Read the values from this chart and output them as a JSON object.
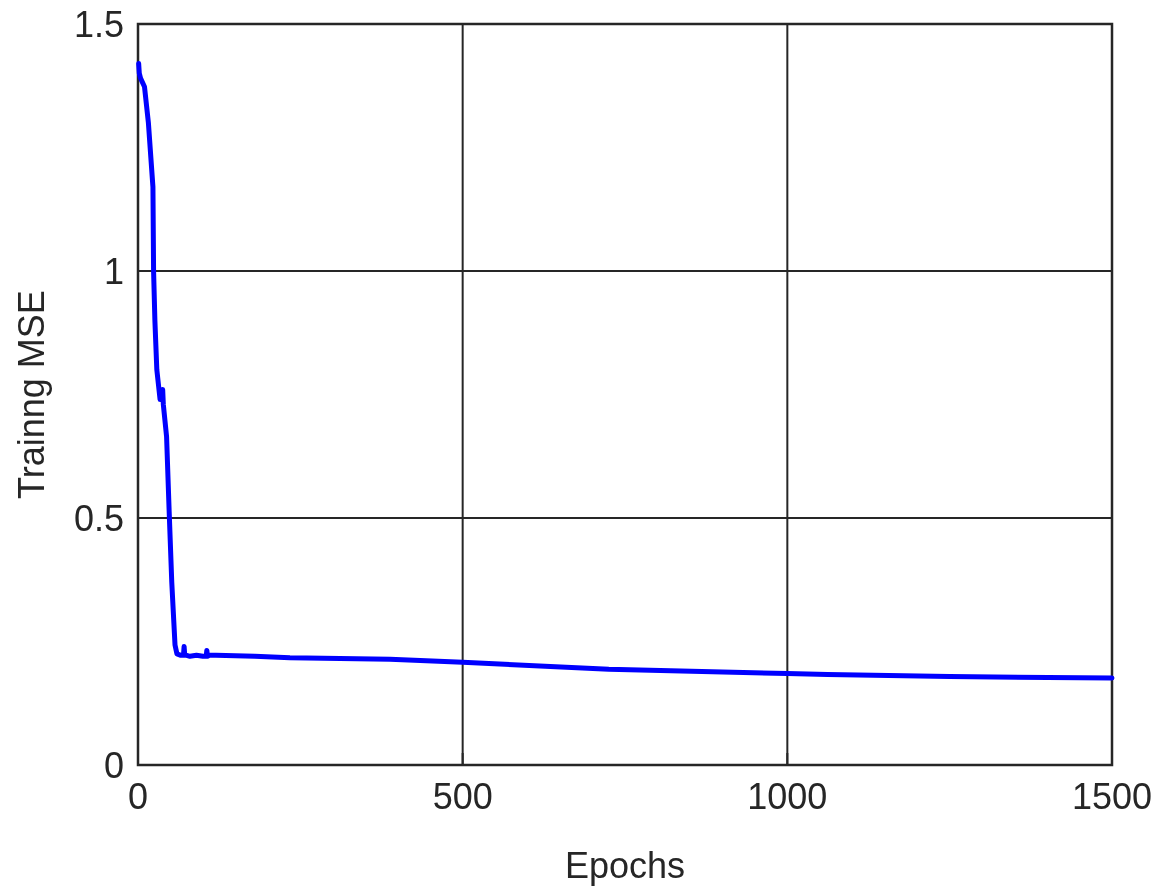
{
  "chart_data": {
    "type": "line",
    "xlabel": "Epochs",
    "ylabel": "Trainng MSE",
    "xlim": [
      0,
      1500
    ],
    "ylim": [
      0,
      1.5
    ],
    "xticks": [
      0,
      500,
      1000,
      1500
    ],
    "yticks": [
      0,
      {
        "value": 0.5,
        "label": "0.5"
      },
      1,
      {
        "value": 1.5,
        "label": "1.5"
      }
    ],
    "grid": true,
    "series": [
      {
        "color": "#0000ff",
        "x": [
          1,
          2,
          4,
          10,
          16,
          23,
          24,
          26,
          29,
          34,
          37,
          38,
          39,
          44,
          48,
          52,
          57,
          60,
          66,
          70,
          71,
          72,
          75,
          80,
          90,
          100,
          105,
          106,
          107,
          110,
          120,
          180,
          234,
          388,
          500,
          725,
          1000,
          1062,
          1250,
          1500
        ],
        "values": [
          1.42,
          1.4,
          1.39,
          1.373,
          1.3,
          1.17,
          1.0,
          0.9,
          0.8,
          0.74,
          0.74,
          0.76,
          0.73,
          0.665,
          0.513,
          0.37,
          0.243,
          0.225,
          0.222,
          0.222,
          0.24,
          0.222,
          0.222,
          0.22,
          0.222,
          0.22,
          0.22,
          0.232,
          0.22,
          0.222,
          0.222,
          0.22,
          0.217,
          0.214,
          0.208,
          0.194,
          0.185,
          0.183,
          0.179,
          0.176
        ]
      }
    ]
  }
}
